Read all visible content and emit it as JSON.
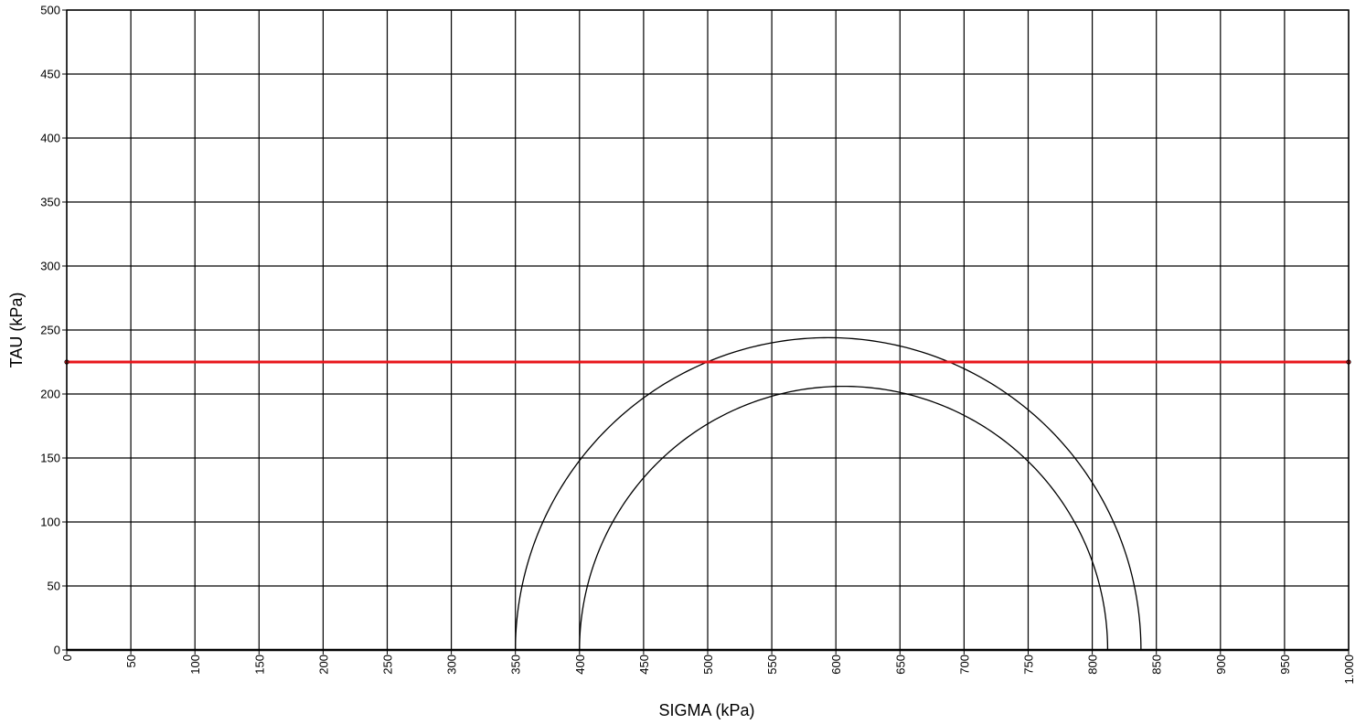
{
  "chart_data": {
    "type": "line",
    "title": "",
    "xlabel": "SIGMA (kPa)",
    "ylabel": "TAU (kPa)",
    "xlim": [
      0,
      1000
    ],
    "ylim": [
      0,
      500
    ],
    "x_ticks": [
      0,
      50,
      100,
      150,
      200,
      250,
      300,
      350,
      400,
      450,
      500,
      550,
      600,
      650,
      700,
      750,
      800,
      850,
      900,
      950,
      1000
    ],
    "x_tick_labels": [
      "0",
      "50",
      "100",
      "150",
      "200",
      "250",
      "300",
      "350",
      "400",
      "450",
      "500",
      "550",
      "600",
      "650",
      "700",
      "750",
      "800",
      "850",
      "900",
      "950",
      "1.000"
    ],
    "y_ticks": [
      0,
      50,
      100,
      150,
      200,
      250,
      300,
      350,
      400,
      450,
      500
    ],
    "y_tick_labels": [
      "0",
      "50",
      "100",
      "150",
      "200",
      "250",
      "300",
      "350",
      "400",
      "450",
      "500"
    ],
    "grid": true,
    "series": [
      {
        "kind": "mohr_circle",
        "sigma3": 350,
        "sigma1": 838,
        "color": "#000000"
      },
      {
        "kind": "mohr_circle",
        "sigma3": 400,
        "sigma1": 812,
        "color": "#000000"
      },
      {
        "kind": "line",
        "x": [
          0,
          1000
        ],
        "y": [
          225,
          225
        ],
        "color": "#e8161b"
      }
    ]
  }
}
